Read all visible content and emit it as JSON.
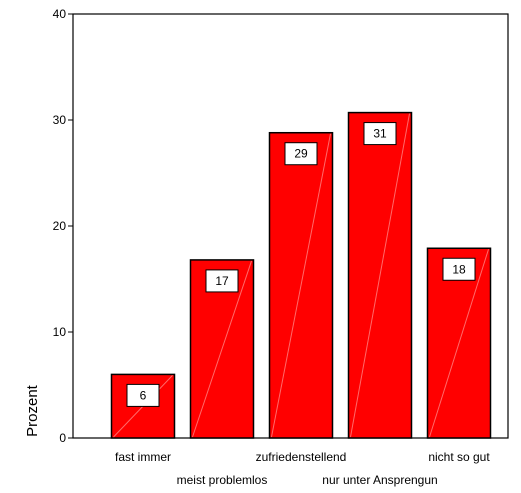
{
  "chart_data": {
    "type": "bar",
    "title": "",
    "xlabel": "",
    "ylabel": "Prozent",
    "ylim": [
      0,
      40
    ],
    "yticks": [
      0,
      10,
      20,
      30,
      40
    ],
    "grid": false,
    "legend": "none",
    "categories": [
      "fast immer",
      "meist problemlos",
      "zufriedenstellend",
      "nur unter Ansprengun",
      "nicht so gut"
    ],
    "values": [
      6.0,
      16.8,
      28.8,
      30.7,
      17.9
    ],
    "data_labels": [
      "6",
      "17",
      "29",
      "31",
      "18"
    ],
    "bar_color": "#ff0000",
    "bar_edge_color": "#000000"
  }
}
